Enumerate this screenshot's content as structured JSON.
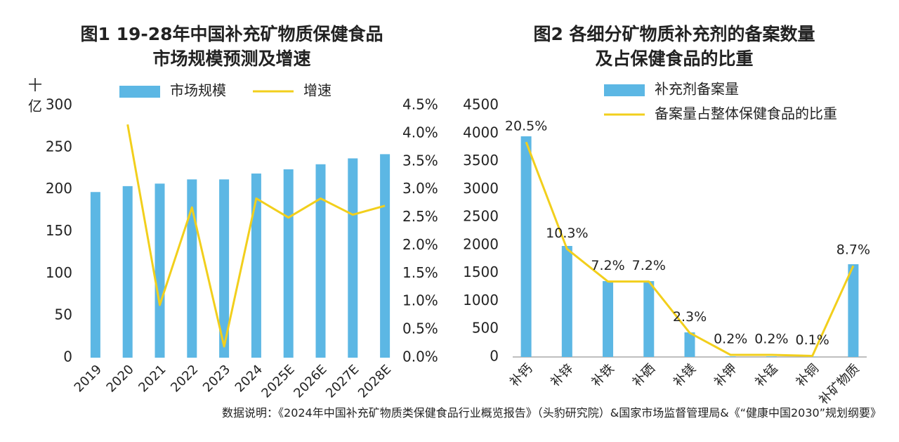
{
  "chart_data": [
    {
      "type": "bar",
      "title": [
        "图1 19-28年中国补充矿物质保健食品",
        "市场规模预测及增速"
      ],
      "ylabel": "十亿",
      "categories": [
        "2019",
        "2020",
        "2021",
        "2022",
        "2023",
        "2024",
        "2025E",
        "2026E",
        "2027E",
        "2028E"
      ],
      "series": [
        {
          "name": "市场规模",
          "type": "bar",
          "color": "#5cb7e4",
          "values": [
            197,
            204,
            207,
            212,
            212,
            219,
            224,
            230,
            237,
            242
          ]
        },
        {
          "name": "增速",
          "type": "line",
          "axis": "y2",
          "color": "#f2cf1c",
          "values": [
            null,
            4.16,
            0.94,
            2.68,
            0.2,
            2.84,
            2.5,
            2.84,
            2.55,
            2.71
          ]
        }
      ],
      "ylim": [
        0,
        300
      ],
      "yticks": [
        0,
        50,
        100,
        150,
        200,
        250,
        300
      ],
      "y2lim": [
        0,
        4.5
      ],
      "y2ticks": [
        {
          "value": 0,
          "label": "0.0%"
        },
        {
          "value": 0.5,
          "label": "0.5%"
        },
        {
          "value": 1,
          "label": "1.0%"
        },
        {
          "value": 1.5,
          "label": "1.5%"
        },
        {
          "value": 2,
          "label": "2.0%"
        },
        {
          "value": 2.5,
          "label": "2.5%"
        },
        {
          "value": 3,
          "label": "3.0%"
        },
        {
          "value": 3.5,
          "label": "3.5%"
        },
        {
          "value": 4,
          "label": "4.0%"
        },
        {
          "value": 4.5,
          "label": "4.5%"
        }
      ],
      "legend": "top"
    },
    {
      "type": "bar",
      "title": [
        "图2 各细分矿物质补充剂的备案数量",
        "及占保健食品的比重"
      ],
      "categories": [
        "补钙",
        "补锌",
        "补铁",
        "补硒",
        "补镁",
        "补钾",
        "补锰",
        "补铜",
        "补矿物质"
      ],
      "series": [
        {
          "name": "补充剂备案量",
          "type": "bar",
          "color": "#5cb7e4",
          "values": [
            3947,
            1986,
            1357,
            1357,
            440,
            10,
            10,
            5,
            1659
          ]
        },
        {
          "name": "备案量占整体保健食品的比重",
          "type": "line",
          "axis": "y2",
          "color": "#f2cf1c",
          "values": [
            20.5,
            10.3,
            7.2,
            7.2,
            2.3,
            0.2,
            0.2,
            0.1,
            8.7
          ],
          "value_labels": [
            "20.5%",
            "10.3%",
            "7.2%",
            "7.2%",
            "2.3%",
            "0.2%",
            "0.2%",
            "0.1%",
            "8.7%"
          ]
        }
      ],
      "ylim": [
        0,
        4500
      ],
      "yticks": [
        0,
        500,
        1000,
        1500,
        2000,
        2500,
        3000,
        3500,
        4000,
        4500
      ],
      "y2lim": [
        0,
        24
      ],
      "legend": "top"
    }
  ],
  "source": "数据说明：《2024年中国补充矿物质类保健食品行业概览报告》（头豹研究院）&国家市场监督管理局&《“健康中国2030”规划纲要》"
}
